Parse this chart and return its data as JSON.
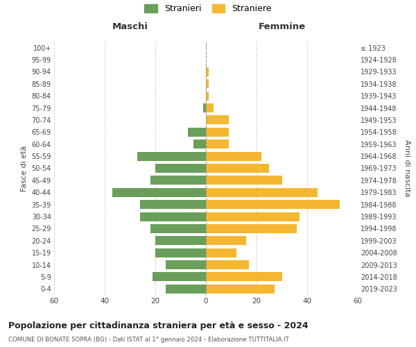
{
  "age_groups": [
    "0-4",
    "5-9",
    "10-14",
    "15-19",
    "20-24",
    "25-29",
    "30-34",
    "35-39",
    "40-44",
    "45-49",
    "50-54",
    "55-59",
    "60-64",
    "65-69",
    "70-74",
    "75-79",
    "80-84",
    "85-89",
    "90-94",
    "95-99",
    "100+"
  ],
  "birth_years": [
    "2019-2023",
    "2014-2018",
    "2009-2013",
    "2004-2008",
    "1999-2003",
    "1994-1998",
    "1989-1993",
    "1984-1988",
    "1979-1983",
    "1974-1978",
    "1969-1973",
    "1964-1968",
    "1959-1963",
    "1954-1958",
    "1949-1953",
    "1944-1948",
    "1939-1943",
    "1934-1938",
    "1929-1933",
    "1924-1928",
    "≤ 1923"
  ],
  "maschi": [
    16,
    21,
    16,
    20,
    20,
    22,
    26,
    26,
    37,
    22,
    20,
    27,
    5,
    7,
    0,
    1,
    0,
    0,
    0,
    0,
    0
  ],
  "femmine": [
    27,
    30,
    17,
    12,
    16,
    36,
    37,
    53,
    44,
    30,
    25,
    22,
    9,
    9,
    9,
    3,
    1,
    1,
    1,
    0,
    0
  ],
  "color_maschi": "#6a9e5b",
  "color_femmine": "#f5b731",
  "title": "Popolazione per cittadinanza straniera per età e sesso - 2024",
  "subtitle": "COMUNE DI BONATE SOPRA (BG) - Dati ISTAT al 1° gennaio 2024 - Elaborazione TUTTITALIA.IT",
  "xlabel_left": "Maschi",
  "xlabel_right": "Femmine",
  "ylabel_left": "Fasce di età",
  "ylabel_right": "Anni di nascita",
  "legend_maschi": "Stranieri",
  "legend_femmine": "Straniere",
  "xlim": 60,
  "bg_color": "#ffffff",
  "grid_color": "#cccccc"
}
